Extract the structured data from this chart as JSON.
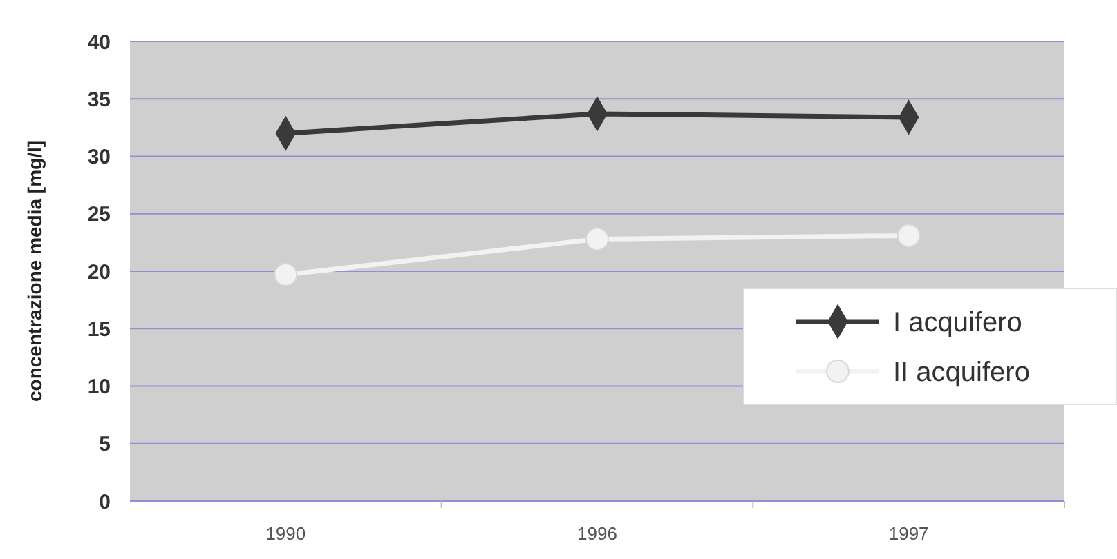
{
  "chart_data": {
    "type": "line",
    "ylabel": "concentrazione media [mg/l]",
    "categories": [
      "1990",
      "1996",
      "1997"
    ],
    "series": [
      {
        "name": "I acquifero",
        "color": "#3a3a3a",
        "marker": "diamond",
        "values": [
          32,
          33.7,
          33.4
        ]
      },
      {
        "name": "II acquifero",
        "color": "#f2f2f2",
        "marker": "circle",
        "values": [
          19.7,
          22.8,
          23.1
        ]
      }
    ],
    "ylim": [
      0,
      40
    ],
    "yticks": [
      0,
      5,
      10,
      15,
      20,
      25,
      30,
      35,
      40
    ],
    "grid": "y",
    "legend": "bottom right"
  }
}
